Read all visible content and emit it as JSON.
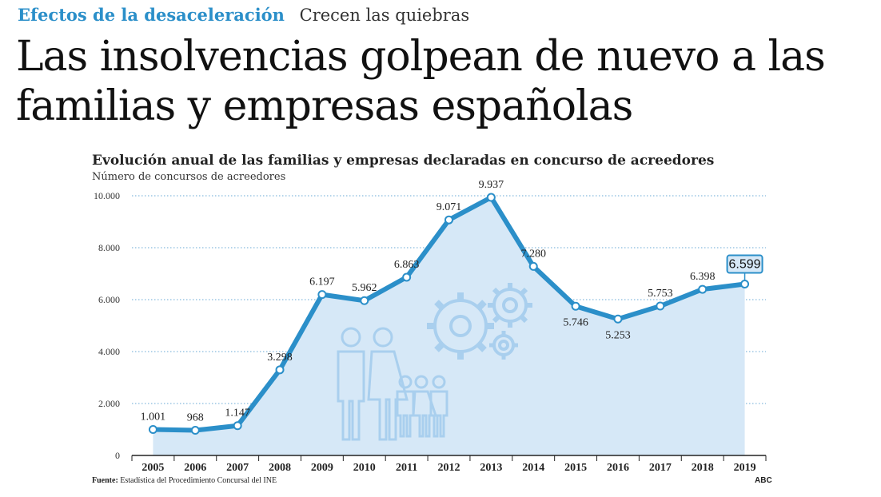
{
  "kicker": {
    "section": "Efectos de la desaceleración",
    "topic": "Crecen las quiebras"
  },
  "headline": "Las insolvencias golpean de nuevo a las familias y empresas españolas",
  "footer": {
    "source_label": "Fuente:",
    "source_text": "Estadística del Procedimiento Concursal del INE",
    "credit": "ABC"
  },
  "colors": {
    "line": "#2b8fc9",
    "area": "#d6e8f7",
    "kicker": "#2b8fc9",
    "icons": "#a9cfee"
  },
  "icons": [
    "family-icon",
    "gears-icon"
  ],
  "chart_data": {
    "type": "area",
    "title": "Evolución anual de las familias y empresas declaradas en concurso de acreedores",
    "ylabel": "Número de concursos de acreedores",
    "xlabel": "",
    "x": [
      "2005",
      "2006",
      "2007",
      "2008",
      "2009",
      "2010",
      "2011",
      "2012",
      "2013",
      "2014",
      "2015",
      "2016",
      "2017",
      "2018",
      "2019"
    ],
    "values": [
      1001,
      968,
      1147,
      3298,
      6197,
      5962,
      6863,
      9071,
      9937,
      7280,
      5746,
      5253,
      5753,
      6398,
      6599
    ],
    "value_labels": [
      "1.001",
      "968",
      "1.147",
      "3.298",
      "6.197",
      "5.962",
      "6.863",
      "9.071",
      "9.937",
      "7.280",
      "5.746",
      "5.253",
      "5.753",
      "6.398",
      "6.599"
    ],
    "ylim": [
      0,
      10000
    ],
    "yticks": [
      0,
      2000,
      4000,
      6000,
      8000,
      10000
    ],
    "ytick_labels": [
      "0",
      "2.000",
      "4.000",
      "6.000",
      "8.000",
      "10.000"
    ],
    "grid": true,
    "highlight_last": true
  }
}
